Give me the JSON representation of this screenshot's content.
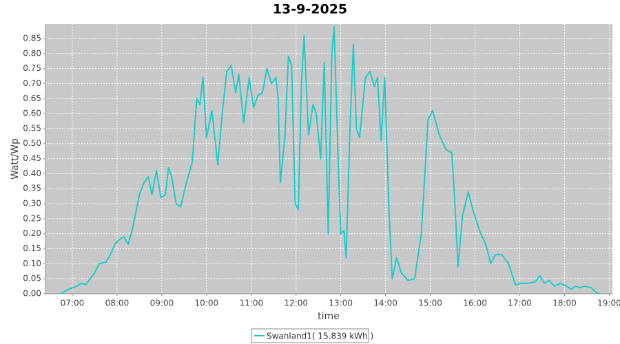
{
  "chart_data": {
    "type": "line",
    "title": "13-9-2025",
    "x_label": "time",
    "y_label": "Watt/Wp",
    "x": [
      6.75,
      6.85,
      7.0,
      7.1,
      7.2,
      7.3,
      7.4,
      7.5,
      7.6,
      7.75,
      7.85,
      7.95,
      8.05,
      8.15,
      8.25,
      8.35,
      8.5,
      8.6,
      8.7,
      8.78,
      8.88,
      8.98,
      9.08,
      9.15,
      9.22,
      9.32,
      9.42,
      9.55,
      9.68,
      9.78,
      9.85,
      9.92,
      10.0,
      10.12,
      10.25,
      10.35,
      10.45,
      10.55,
      10.65,
      10.72,
      10.83,
      10.95,
      11.05,
      11.15,
      11.25,
      11.35,
      11.45,
      11.55,
      11.6,
      11.65,
      11.75,
      11.83,
      11.9,
      11.98,
      12.05,
      12.12,
      12.18,
      12.28,
      12.38,
      12.45,
      12.55,
      12.63,
      12.72,
      12.8,
      12.85,
      12.95,
      13.0,
      13.07,
      13.12,
      13.2,
      13.28,
      13.35,
      13.42,
      13.55,
      13.65,
      13.75,
      13.82,
      13.9,
      13.98,
      14.07,
      14.15,
      14.25,
      14.35,
      14.5,
      14.65,
      14.8,
      14.95,
      15.05,
      15.2,
      15.35,
      15.48,
      15.55,
      15.62,
      15.72,
      15.85,
      15.95,
      16.1,
      16.25,
      16.35,
      16.45,
      16.6,
      16.75,
      16.9,
      17.05,
      17.2,
      17.35,
      17.45,
      17.55,
      17.65,
      17.78,
      17.9,
      18.05,
      18.15,
      18.25,
      18.35,
      18.45,
      18.6,
      18.7,
      18.78
    ],
    "series": [
      {
        "name": "Swanland1( 15.839 kWh )",
        "color": "#1ccccc",
        "values": [
          0,
          0.01,
          0.02,
          0.025,
          0.035,
          0.03,
          0.05,
          0.07,
          0.1,
          0.105,
          0.13,
          0.165,
          0.18,
          0.19,
          0.165,
          0.22,
          0.33,
          0.37,
          0.39,
          0.33,
          0.41,
          0.32,
          0.33,
          0.42,
          0.39,
          0.3,
          0.29,
          0.37,
          0.44,
          0.65,
          0.63,
          0.72,
          0.52,
          0.61,
          0.43,
          0.6,
          0.74,
          0.76,
          0.67,
          0.73,
          0.57,
          0.72,
          0.62,
          0.66,
          0.67,
          0.75,
          0.7,
          0.72,
          0.65,
          0.37,
          0.52,
          0.79,
          0.76,
          0.3,
          0.28,
          0.7,
          0.86,
          0.53,
          0.63,
          0.6,
          0.45,
          0.77,
          0.2,
          0.8,
          0.89,
          0.4,
          0.2,
          0.21,
          0.12,
          0.53,
          0.83,
          0.55,
          0.52,
          0.72,
          0.74,
          0.69,
          0.72,
          0.51,
          0.72,
          0.3,
          0.05,
          0.12,
          0.07,
          0.045,
          0.05,
          0.2,
          0.58,
          0.61,
          0.53,
          0.48,
          0.47,
          0.3,
          0.09,
          0.26,
          0.34,
          0.28,
          0.21,
          0.16,
          0.1,
          0.13,
          0.13,
          0.1,
          0.03,
          0.035,
          0.035,
          0.04,
          0.06,
          0.035,
          0.045,
          0.025,
          0.035,
          0.025,
          0.015,
          0.025,
          0.02,
          0.025,
          0.02,
          0.005,
          0
        ]
      }
    ],
    "xlim": [
      6.4,
      19.07
    ],
    "ylim": [
      0,
      0.898
    ],
    "xticks": [
      {
        "value": 7,
        "label": "07:00"
      },
      {
        "value": 8,
        "label": "08:00"
      },
      {
        "value": 9,
        "label": "09:00"
      },
      {
        "value": 10,
        "label": "10:00"
      },
      {
        "value": 11,
        "label": "11:00"
      },
      {
        "value": 12,
        "label": "12:00"
      },
      {
        "value": 13,
        "label": "13:00"
      },
      {
        "value": 14,
        "label": "14:00"
      },
      {
        "value": 15,
        "label": "15:00"
      },
      {
        "value": 16,
        "label": "16:00"
      },
      {
        "value": 17,
        "label": "17:00"
      },
      {
        "value": 18,
        "label": "18:00"
      },
      {
        "value": 19,
        "label": "19:00"
      }
    ],
    "yticks": [
      {
        "value": 0,
        "label": "0.00"
      },
      {
        "value": 0.05,
        "label": "0.05"
      },
      {
        "value": 0.1,
        "label": "0.10"
      },
      {
        "value": 0.15,
        "label": "0.15"
      },
      {
        "value": 0.2,
        "label": "0.20"
      },
      {
        "value": 0.25,
        "label": "0.25"
      },
      {
        "value": 0.3,
        "label": "0.30"
      },
      {
        "value": 0.35,
        "label": "0.35"
      },
      {
        "value": 0.4,
        "label": "0.40"
      },
      {
        "value": 0.45,
        "label": "0.45"
      },
      {
        "value": 0.5,
        "label": "0.50"
      },
      {
        "value": 0.55,
        "label": "0.55"
      },
      {
        "value": 0.6,
        "label": "0.60"
      },
      {
        "value": 0.65,
        "label": "0.65"
      },
      {
        "value": 0.7,
        "label": "0.70"
      },
      {
        "value": 0.75,
        "label": "0.75"
      },
      {
        "value": 0.8,
        "label": "0.80"
      },
      {
        "value": 0.85,
        "label": "0.85"
      }
    ],
    "grid": true,
    "legend": "bottom"
  }
}
